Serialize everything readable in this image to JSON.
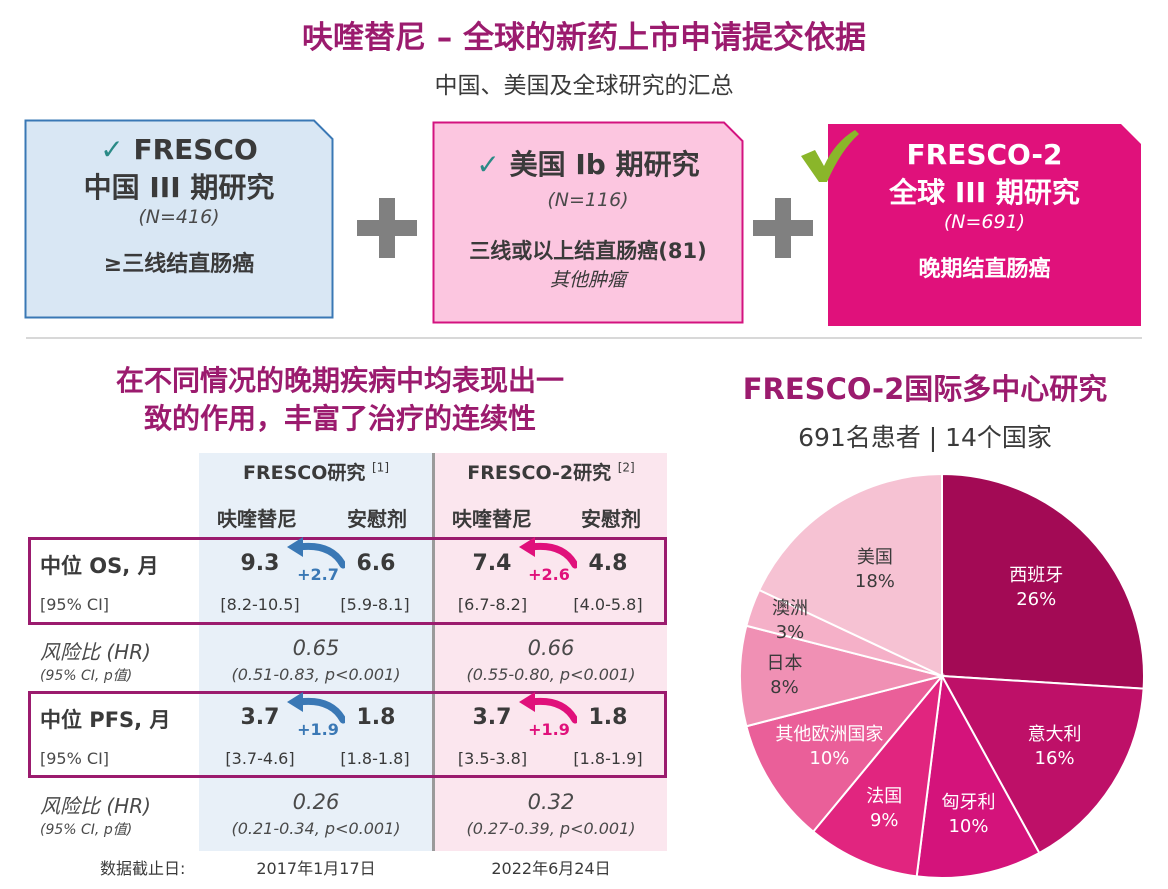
{
  "header": {
    "title": "呋喹替尼 – 全球的新药上市申请提交依据",
    "subtitle": "中国、美国及全球研究的汇总"
  },
  "cards": [
    {
      "name": "FRESCO",
      "line2": "中国 III 期研究",
      "n": "(N=416)",
      "desc": "≥三线结直肠癌",
      "desc2": "",
      "check": "✓"
    },
    {
      "name": "美国 Ib 期研究",
      "line2": "",
      "n": "(N=116)",
      "desc": "三线或以上结直肠癌(81)",
      "desc2": "其他肿瘤",
      "check": "✓"
    },
    {
      "name": "FRESCO-2",
      "line2": "全球 III 期研究",
      "n": "(N=691)",
      "desc": "晚期结直肠癌",
      "desc2": "",
      "check": "✓"
    }
  ],
  "colors": {
    "brand": "#9b1b6e",
    "card1_bg": "#d9e7f4",
    "card1_border": "#3a78b5",
    "card2_bg": "#fcc6e0",
    "card2_border": "#d3137f",
    "card3_bg": "#e0117b",
    "check": "#2a8a86",
    "check_big": "#8ab62a",
    "blue_arrow": "#3a78b5",
    "pink_arrow": "#e0117b"
  },
  "left_section": {
    "title_line1": "在不同情况的晚期疾病中均表现出一",
    "title_line2": "致的作用，丰富了治疗的连续性"
  },
  "table": {
    "studies": [
      {
        "label": "FRESCO研究",
        "ref": "[1]",
        "drug": "呋喹替尼",
        "placebo": "安慰剂"
      },
      {
        "label": "FRESCO-2研究",
        "ref": "[2]",
        "drug": "呋喹替尼",
        "placebo": "安慰剂"
      }
    ],
    "os": {
      "label": "中位 OS, 月",
      "ci_label": "[95% CI]",
      "values": [
        {
          "drug": "9.3",
          "placebo": "6.6",
          "diff": "+2.7",
          "drug_ci": "[8.2-10.5]",
          "placebo_ci": "[5.9-8.1]"
        },
        {
          "drug": "7.4",
          "placebo": "4.8",
          "diff": "+2.6",
          "drug_ci": "[6.7-8.2]",
          "placebo_ci": "[4.0-5.8]"
        }
      ]
    },
    "os_hr": {
      "label": "风险比 (HR)",
      "sub": "(95% CI, p值)",
      "values": [
        {
          "hr": "0.65",
          "ci": "(0.51-0.83, p<0.001)"
        },
        {
          "hr": "0.66",
          "ci": "(0.55-0.80, p<0.001)"
        }
      ]
    },
    "pfs": {
      "label": "中位 PFS, 月",
      "ci_label": "[95% CI]",
      "values": [
        {
          "drug": "3.7",
          "placebo": "1.8",
          "diff": "+1.9",
          "drug_ci": "[3.7-4.6]",
          "placebo_ci": "[1.8-1.8]"
        },
        {
          "drug": "3.7",
          "placebo": "1.8",
          "diff": "+1.9",
          "drug_ci": "[3.5-3.8]",
          "placebo_ci": "[1.8-1.9]"
        }
      ]
    },
    "pfs_hr": {
      "label": "风险比 (HR)",
      "sub": "(95% CI, p值)",
      "values": [
        {
          "hr": "0.26",
          "ci": "(0.21-0.34, p<0.001)"
        },
        {
          "hr": "0.32",
          "ci": "(0.27-0.39, p<0.001)"
        }
      ]
    },
    "cutoff_label": "数据截止日:",
    "cutoff_dates": [
      "2017年1月17日",
      "2022年6月24日"
    ]
  },
  "pie_section": {
    "title": "FRESCO-2国际多中心研究",
    "subtitle": "691名患者 | 14个国家"
  },
  "chart_data": {
    "type": "pie",
    "slices": [
      {
        "label": "西班牙",
        "pct": "26%",
        "value": 26,
        "color": "#a30a55",
        "text_color": "#ffffff"
      },
      {
        "label": "意大利",
        "pct": "16%",
        "value": 16,
        "color": "#be1068",
        "text_color": "#ffffff"
      },
      {
        "label": "匈牙利",
        "pct": "10%",
        "value": 10,
        "color": "#d4137b",
        "text_color": "#ffffff"
      },
      {
        "label": "法国",
        "pct": "9%",
        "value": 9,
        "color": "#e1257f",
        "text_color": "#ffffff"
      },
      {
        "label": "其他欧洲国家",
        "pct": "10%",
        "value": 10,
        "color": "#ea5f99",
        "text_color": "#ffffff"
      },
      {
        "label": "日本",
        "pct": "8%",
        "value": 8,
        "color": "#f090b4",
        "text_color": "#3a3a3a"
      },
      {
        "label": "澳洲",
        "pct": "3%",
        "value": 3,
        "color": "#f5b0c8",
        "text_color": "#3a3a3a"
      },
      {
        "label": "美国",
        "pct": "18%",
        "value": 18,
        "color": "#f6c2d3",
        "text_color": "#3a3a3a"
      }
    ]
  }
}
